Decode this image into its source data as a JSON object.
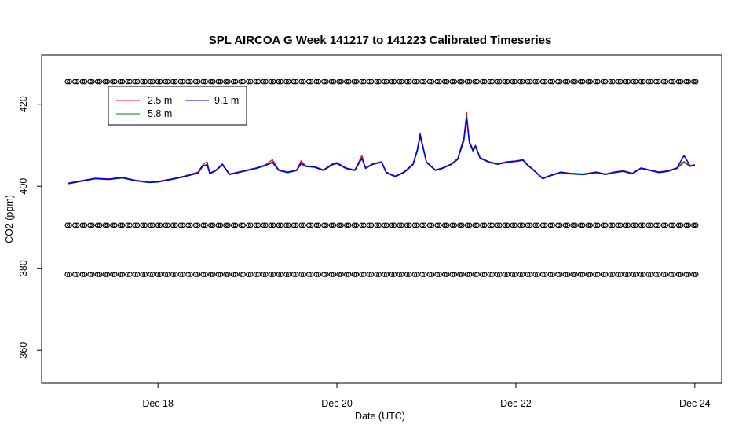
{
  "chart_data": {
    "type": "line",
    "title": "SPL AIRCOA G  Week 141217 to 141223  Calibrated Timeseries",
    "xlabel": "Date (UTC)",
    "ylabel": "CO2 (ppm)",
    "x_ticks": [
      "Dec 18",
      "Dec 20",
      "Dec 22",
      "Dec 24"
    ],
    "x_tick_values": [
      18,
      20,
      22,
      24
    ],
    "y_ticks": [
      "360",
      "380",
      "400",
      "420"
    ],
    "y_tick_values": [
      360,
      380,
      400,
      420
    ],
    "xlim": [
      16.7,
      24.3
    ],
    "ylim": [
      352,
      432
    ],
    "legend": {
      "position": "top-left",
      "entries": [
        "2.5 m",
        "5.8 m",
        "9.1 m"
      ]
    },
    "series": [
      {
        "name": "2.5 m",
        "color": "#ff0000",
        "points": [
          [
            17.0,
            400.8
          ],
          [
            17.15,
            401.4
          ],
          [
            17.3,
            402.0
          ],
          [
            17.45,
            401.8
          ],
          [
            17.6,
            402.2
          ],
          [
            17.75,
            401.5
          ],
          [
            17.9,
            401.0
          ],
          [
            18.0,
            401.2
          ],
          [
            18.15,
            401.8
          ],
          [
            18.3,
            402.5
          ],
          [
            18.45,
            403.5
          ],
          [
            18.5,
            405.2
          ],
          [
            18.55,
            406.0
          ],
          [
            18.58,
            403.2
          ],
          [
            18.65,
            404.0
          ],
          [
            18.72,
            405.5
          ],
          [
            18.8,
            403.0
          ],
          [
            18.9,
            403.5
          ],
          [
            19.0,
            404.0
          ],
          [
            19.1,
            404.5
          ],
          [
            19.2,
            405.2
          ],
          [
            19.28,
            406.5
          ],
          [
            19.35,
            404.0
          ],
          [
            19.45,
            403.5
          ],
          [
            19.55,
            404.0
          ],
          [
            19.6,
            406.2
          ],
          [
            19.65,
            405.0
          ],
          [
            19.75,
            404.8
          ],
          [
            19.85,
            404.0
          ],
          [
            19.95,
            405.5
          ],
          [
            20.0,
            405.8
          ],
          [
            20.1,
            404.5
          ],
          [
            20.2,
            404.0
          ],
          [
            20.28,
            407.5
          ],
          [
            20.32,
            404.5
          ],
          [
            20.4,
            405.5
          ],
          [
            20.5,
            406.0
          ],
          [
            20.55,
            403.5
          ],
          [
            20.65,
            402.5
          ],
          [
            20.75,
            403.5
          ],
          [
            20.85,
            405.5
          ],
          [
            20.9,
            409.0
          ],
          [
            20.93,
            413.0
          ],
          [
            20.97,
            409.0
          ],
          [
            21.0,
            406.0
          ],
          [
            21.1,
            404.0
          ],
          [
            21.18,
            404.5
          ],
          [
            21.28,
            405.5
          ],
          [
            21.35,
            406.8
          ],
          [
            21.42,
            412.0
          ],
          [
            21.45,
            418.0
          ],
          [
            21.48,
            411.0
          ],
          [
            21.52,
            409.0
          ],
          [
            21.55,
            410.0
          ],
          [
            21.6,
            407.0
          ],
          [
            21.7,
            406.0
          ],
          [
            21.8,
            405.5
          ],
          [
            21.9,
            406.0
          ],
          [
            22.0,
            406.2
          ],
          [
            22.08,
            406.5
          ],
          [
            22.12,
            405.5
          ],
          [
            22.2,
            404.0
          ],
          [
            22.3,
            402.0
          ],
          [
            22.4,
            402.8
          ],
          [
            22.5,
            403.5
          ],
          [
            22.6,
            403.2
          ],
          [
            22.75,
            403.0
          ],
          [
            22.9,
            403.5
          ],
          [
            23.0,
            403.0
          ],
          [
            23.1,
            403.5
          ],
          [
            23.2,
            403.8
          ],
          [
            23.3,
            403.2
          ],
          [
            23.4,
            404.5
          ],
          [
            23.5,
            404.0
          ],
          [
            23.6,
            403.5
          ],
          [
            23.7,
            403.8
          ],
          [
            23.8,
            404.5
          ],
          [
            23.88,
            406.0
          ],
          [
            23.95,
            405.0
          ],
          [
            24.0,
            405.3
          ]
        ]
      },
      {
        "name": "5.8 m",
        "color": "#008000",
        "points": [
          [
            17.0,
            400.6
          ],
          [
            17.15,
            401.2
          ],
          [
            17.3,
            401.8
          ],
          [
            17.45,
            401.6
          ],
          [
            17.6,
            402.0
          ],
          [
            17.75,
            401.3
          ],
          [
            17.9,
            400.9
          ],
          [
            18.0,
            401.0
          ],
          [
            18.15,
            401.6
          ],
          [
            18.3,
            402.3
          ],
          [
            18.45,
            403.2
          ],
          [
            18.5,
            404.8
          ],
          [
            18.55,
            405.4
          ],
          [
            18.58,
            403.0
          ],
          [
            18.65,
            403.8
          ],
          [
            18.72,
            405.2
          ],
          [
            18.8,
            402.8
          ],
          [
            18.9,
            403.3
          ],
          [
            19.0,
            403.8
          ],
          [
            19.1,
            404.3
          ],
          [
            19.2,
            405.0
          ],
          [
            19.28,
            406.0
          ],
          [
            19.35,
            403.8
          ],
          [
            19.45,
            403.3
          ],
          [
            19.55,
            403.8
          ],
          [
            19.6,
            405.8
          ],
          [
            19.65,
            404.8
          ],
          [
            19.75,
            404.6
          ],
          [
            19.85,
            403.8
          ],
          [
            19.95,
            405.2
          ],
          [
            20.0,
            405.5
          ],
          [
            20.1,
            404.3
          ],
          [
            20.2,
            403.8
          ],
          [
            20.28,
            407.0
          ],
          [
            20.32,
            404.3
          ],
          [
            20.4,
            405.3
          ],
          [
            20.5,
            405.8
          ],
          [
            20.55,
            403.3
          ],
          [
            20.65,
            402.3
          ],
          [
            20.75,
            403.3
          ],
          [
            20.85,
            405.2
          ],
          [
            20.9,
            408.5
          ],
          [
            20.93,
            412.0
          ],
          [
            20.97,
            408.5
          ],
          [
            21.0,
            405.8
          ],
          [
            21.1,
            403.8
          ],
          [
            21.18,
            404.3
          ],
          [
            21.28,
            405.3
          ],
          [
            21.35,
            406.5
          ],
          [
            21.42,
            411.0
          ],
          [
            21.45,
            417.0
          ],
          [
            21.48,
            410.5
          ],
          [
            21.52,
            408.5
          ],
          [
            21.55,
            409.5
          ],
          [
            21.6,
            406.8
          ],
          [
            21.7,
            405.8
          ],
          [
            21.8,
            405.3
          ],
          [
            21.9,
            405.8
          ],
          [
            22.0,
            406.0
          ],
          [
            22.08,
            406.3
          ],
          [
            22.12,
            405.3
          ],
          [
            22.2,
            403.8
          ],
          [
            22.3,
            401.8
          ],
          [
            22.4,
            402.6
          ],
          [
            22.5,
            403.3
          ],
          [
            22.6,
            403.0
          ],
          [
            22.75,
            402.8
          ],
          [
            22.9,
            403.3
          ],
          [
            23.0,
            402.8
          ],
          [
            23.1,
            403.3
          ],
          [
            23.2,
            403.6
          ],
          [
            23.3,
            403.0
          ],
          [
            23.4,
            404.3
          ],
          [
            23.5,
            403.8
          ],
          [
            23.6,
            403.3
          ],
          [
            23.7,
            403.6
          ],
          [
            23.8,
            404.3
          ],
          [
            23.88,
            405.8
          ],
          [
            23.95,
            404.8
          ],
          [
            24.0,
            405.1
          ]
        ]
      },
      {
        "name": "9.1 m",
        "color": "#0000ff",
        "points": [
          [
            17.0,
            400.7
          ],
          [
            17.15,
            401.3
          ],
          [
            17.3,
            401.9
          ],
          [
            17.45,
            401.7
          ],
          [
            17.6,
            402.1
          ],
          [
            17.75,
            401.4
          ],
          [
            17.9,
            400.95
          ],
          [
            18.0,
            401.1
          ],
          [
            18.15,
            401.7
          ],
          [
            18.3,
            402.4
          ],
          [
            18.45,
            403.3
          ],
          [
            18.5,
            405.0
          ],
          [
            18.55,
            405.2
          ],
          [
            18.58,
            403.1
          ],
          [
            18.65,
            403.9
          ],
          [
            18.72,
            405.3
          ],
          [
            18.8,
            402.9
          ],
          [
            18.9,
            403.4
          ],
          [
            19.0,
            403.9
          ],
          [
            19.1,
            404.4
          ],
          [
            19.2,
            405.1
          ],
          [
            19.28,
            405.8
          ],
          [
            19.35,
            403.9
          ],
          [
            19.45,
            403.4
          ],
          [
            19.55,
            403.9
          ],
          [
            19.6,
            405.5
          ],
          [
            19.65,
            404.9
          ],
          [
            19.75,
            404.7
          ],
          [
            19.85,
            403.9
          ],
          [
            19.95,
            405.3
          ],
          [
            20.0,
            405.6
          ],
          [
            20.1,
            404.4
          ],
          [
            20.2,
            403.9
          ],
          [
            20.28,
            406.8
          ],
          [
            20.32,
            404.4
          ],
          [
            20.4,
            405.4
          ],
          [
            20.5,
            405.9
          ],
          [
            20.55,
            403.4
          ],
          [
            20.65,
            402.4
          ],
          [
            20.75,
            403.4
          ],
          [
            20.85,
            405.3
          ],
          [
            20.9,
            409.0
          ],
          [
            20.93,
            412.5
          ],
          [
            20.97,
            408.8
          ],
          [
            21.0,
            405.9
          ],
          [
            21.1,
            403.9
          ],
          [
            21.18,
            404.4
          ],
          [
            21.28,
            405.4
          ],
          [
            21.35,
            406.6
          ],
          [
            21.42,
            411.5
          ],
          [
            21.45,
            416.5
          ],
          [
            21.48,
            410.8
          ],
          [
            21.52,
            408.8
          ],
          [
            21.55,
            409.8
          ],
          [
            21.6,
            406.9
          ],
          [
            21.7,
            405.9
          ],
          [
            21.8,
            405.4
          ],
          [
            21.9,
            405.9
          ],
          [
            22.0,
            406.1
          ],
          [
            22.08,
            406.4
          ],
          [
            22.12,
            405.4
          ],
          [
            22.2,
            403.9
          ],
          [
            22.3,
            401.9
          ],
          [
            22.4,
            402.7
          ],
          [
            22.5,
            403.4
          ],
          [
            22.6,
            403.1
          ],
          [
            22.75,
            402.9
          ],
          [
            22.9,
            403.4
          ],
          [
            23.0,
            402.9
          ],
          [
            23.1,
            403.4
          ],
          [
            23.2,
            403.7
          ],
          [
            23.3,
            403.1
          ],
          [
            23.4,
            404.4
          ],
          [
            23.5,
            403.9
          ],
          [
            23.6,
            403.4
          ],
          [
            23.7,
            403.7
          ],
          [
            23.8,
            404.4
          ],
          [
            23.88,
            407.5
          ],
          [
            23.95,
            404.9
          ],
          [
            24.0,
            405.2
          ]
        ]
      }
    ],
    "marker_rows": [
      {
        "y": 425.5,
        "x_start": 17.0,
        "x_end": 24.0,
        "count": 84
      },
      {
        "y": 390.5,
        "x_start": 17.0,
        "x_end": 24.0,
        "count": 84
      },
      {
        "y": 378.5,
        "x_start": 17.0,
        "x_end": 24.0,
        "count": 84
      }
    ]
  }
}
